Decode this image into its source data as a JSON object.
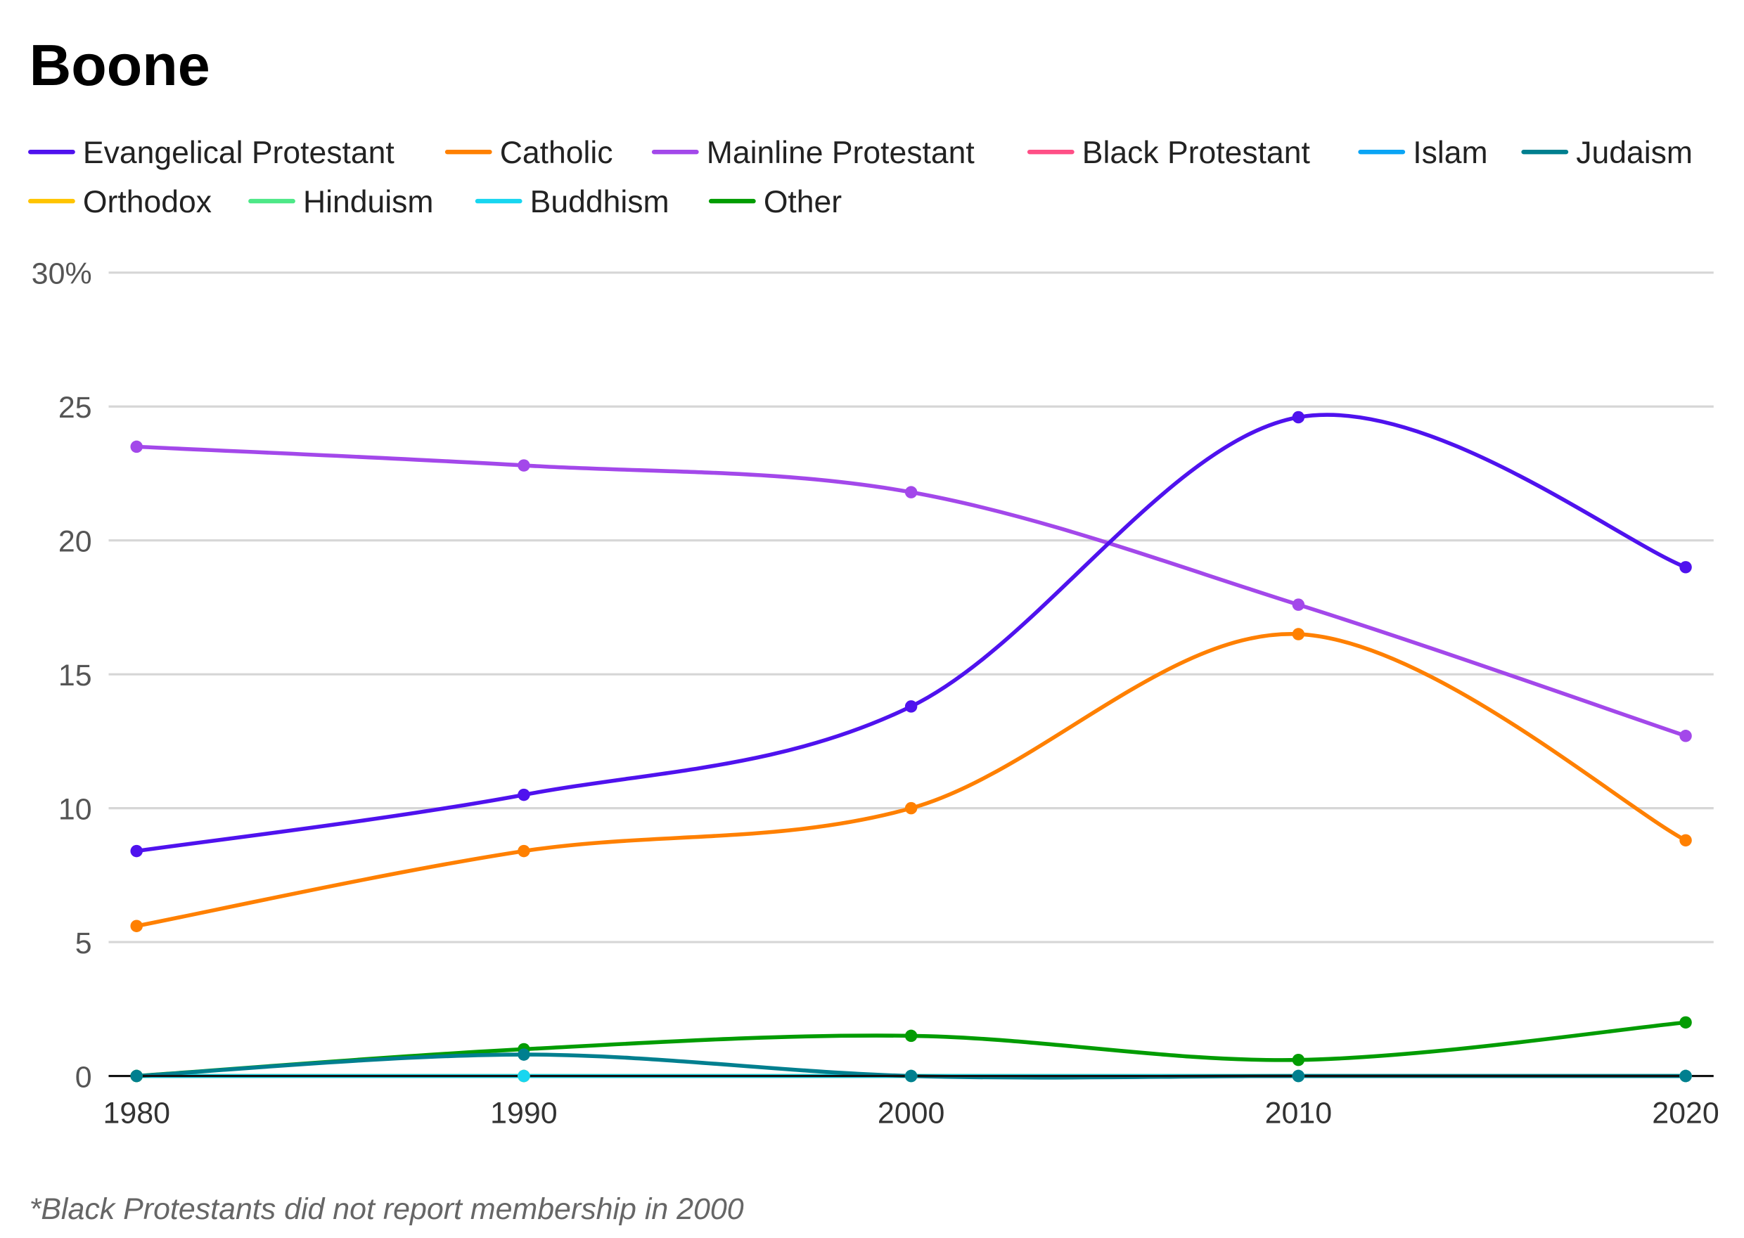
{
  "chart_data": {
    "type": "line",
    "title": "Boone",
    "footnote": "*Black Protestants did not report membership in 2000",
    "x": [
      1980,
      1990,
      2000,
      2010,
      2020
    ],
    "x_tick_labels": [
      "1980",
      "1990",
      "2000",
      "2010",
      "2020"
    ],
    "y_tick_labels": [
      "0",
      "5",
      "10",
      "15",
      "20",
      "25",
      "30%"
    ],
    "ylim": [
      0,
      30
    ],
    "y_unit": "%",
    "grid": true,
    "legend_position": "top",
    "smooth": true,
    "series": [
      {
        "name": "Evangelical Protestant",
        "color": "#4f12ee",
        "values": [
          8.4,
          10.5,
          13.8,
          24.6,
          19.0
        ]
      },
      {
        "name": "Catholic",
        "color": "#ff8000",
        "values": [
          5.6,
          8.4,
          10.0,
          16.5,
          8.8
        ]
      },
      {
        "name": "Mainline Protestant",
        "color": "#a348ea",
        "values": [
          23.5,
          22.8,
          21.8,
          17.6,
          12.7
        ]
      },
      {
        "name": "Black Protestant",
        "color": "#ff4f86",
        "values": [
          0,
          0,
          null,
          0,
          0
        ]
      },
      {
        "name": "Islam",
        "color": "#0aa5f5",
        "values": [
          0,
          0,
          0,
          0,
          0
        ]
      },
      {
        "name": "Judaism",
        "color": "#007f8f",
        "values": [
          0,
          0.8,
          0,
          0,
          0
        ]
      },
      {
        "name": "Orthodox",
        "color": "#ffc400",
        "values": [
          0,
          0,
          0,
          0,
          0
        ]
      },
      {
        "name": "Hinduism",
        "color": "#4de887",
        "values": [
          0,
          0,
          0,
          0,
          0
        ]
      },
      {
        "name": "Buddhism",
        "color": "#18d6f0",
        "values": [
          0,
          0,
          0,
          0,
          0
        ]
      },
      {
        "name": "Other",
        "color": "#029c02",
        "values": [
          0,
          1.0,
          1.5,
          0.6,
          2.0
        ]
      }
    ]
  }
}
